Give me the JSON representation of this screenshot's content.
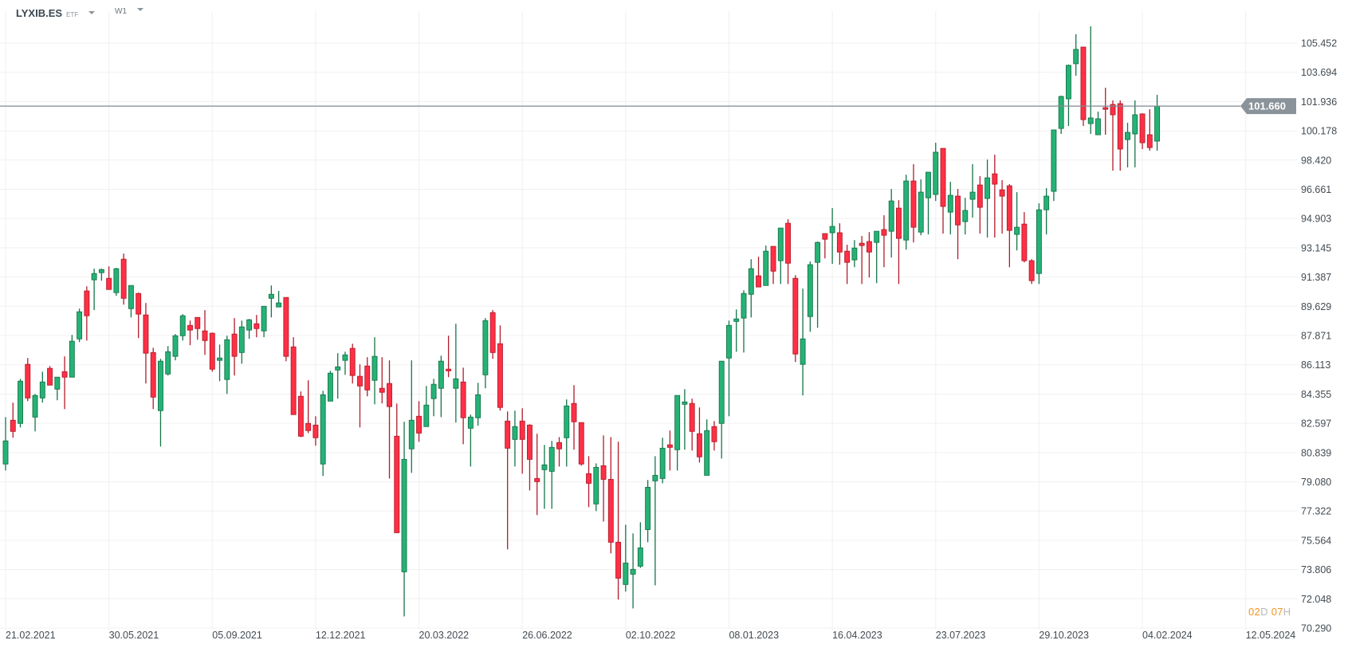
{
  "header": {
    "symbol": "LYXIB.ES",
    "instrument_type": "ETF",
    "timeframe": "W1"
  },
  "countdown": {
    "days": "02",
    "days_unit": "D",
    "hours": "07",
    "hours_unit": "H"
  },
  "colors": {
    "up_fill": "#26b276",
    "up_border": "#157549",
    "down_fill": "#ff3045",
    "down_border": "#b31b2b",
    "price_line": "#7f8a91",
    "grid": "#f0f0f0",
    "countdown_accent": "#f7931e"
  },
  "chart_data": {
    "type": "candlestick",
    "interval": "weekly",
    "current_price": "101.660",
    "current_price_value": 101.66,
    "ylim": [
      70.29,
      105.452
    ],
    "grid": true,
    "y_ticks": [
      "105.452",
      "103.694",
      "101.936",
      "100.178",
      "98.420",
      "96.661",
      "94.903",
      "93.145",
      "91.387",
      "89.629",
      "87.871",
      "86.113",
      "84.355",
      "82.597",
      "80.839",
      "79.080",
      "77.322",
      "75.564",
      "73.806",
      "72.048",
      "70.290"
    ],
    "x_ticks": [
      "21.02.2021",
      "30.05.2021",
      "05.09.2021",
      "12.12.2021",
      "20.03.2022",
      "26.06.2022",
      "02.10.2022",
      "08.01.2023",
      "16.04.2023",
      "23.07.2023",
      "29.10.2023",
      "04.02.2024",
      "12.05.2024"
    ],
    "weeks_per_x_tick": 14,
    "candles_ohlc": [
      [
        80.15,
        82.97,
        79.76,
        81.54
      ],
      [
        82.78,
        83.84,
        81.73,
        82.11
      ],
      [
        82.59,
        85.27,
        82.35,
        85.13
      ],
      [
        86.14,
        86.52,
        83.93,
        84.12
      ],
      [
        82.97,
        84.36,
        82.11,
        84.27
      ],
      [
        84.12,
        85.7,
        83.84,
        85.08
      ],
      [
        85.9,
        86.04,
        84.89,
        84.89
      ],
      [
        84.65,
        85.37,
        83.98,
        85.37
      ],
      [
        85.7,
        86.62,
        83.45,
        85.37
      ],
      [
        85.37,
        87.91,
        85.37,
        87.53
      ],
      [
        87.67,
        89.49,
        87.48,
        89.3
      ],
      [
        90.55,
        90.83,
        87.57,
        89.06
      ],
      [
        91.22,
        91.89,
        89.4,
        91.6
      ],
      [
        91.65,
        91.89,
        91.17,
        91.84
      ],
      [
        91.31,
        92.03,
        90.64,
        90.64
      ],
      [
        90.45,
        91.94,
        90.26,
        91.89
      ],
      [
        92.46,
        92.8,
        89.73,
        90.11
      ],
      [
        89.49,
        90.88,
        88.96,
        90.88
      ],
      [
        90.4,
        90.45,
        87.72,
        89.16
      ],
      [
        89.11,
        89.83,
        84.99,
        86.81
      ],
      [
        86.85,
        87.14,
        83.45,
        84.17
      ],
      [
        83.36,
        86.47,
        81.2,
        86.33
      ],
      [
        85.56,
        87.24,
        85.47,
        86.9
      ],
      [
        86.62,
        87.96,
        86.38,
        87.86
      ],
      [
        87.86,
        89.16,
        87.57,
        89.06
      ],
      [
        88.48,
        88.77,
        87.29,
        88.2
      ],
      [
        88.96,
        88.96,
        87.62,
        88.29
      ],
      [
        88.15,
        89.4,
        86.71,
        87.57
      ],
      [
        88.01,
        88.05,
        85.7,
        85.85
      ],
      [
        86.38,
        87.33,
        85.13,
        86.52
      ],
      [
        85.23,
        87.86,
        84.36,
        87.62
      ],
      [
        87.96,
        88.92,
        85.47,
        86.62
      ],
      [
        86.85,
        88.77,
        86.18,
        88.39
      ],
      [
        88.2,
        88.87,
        87.67,
        88.82
      ],
      [
        88.58,
        89.11,
        87.77,
        88.29
      ],
      [
        88.15,
        89.63,
        87.77,
        89.63
      ],
      [
        90.11,
        90.88,
        88.96,
        90.35
      ],
      [
        89.59,
        90.55,
        89.59,
        89.83
      ],
      [
        90.16,
        90.16,
        86.33,
        86.62
      ],
      [
        87.19,
        87.77,
        83.12,
        83.12
      ],
      [
        84.22,
        84.51,
        81.77,
        81.82
      ],
      [
        82.59,
        85.18,
        82.01,
        82.16
      ],
      [
        82.49,
        83.02,
        81.25,
        81.73
      ],
      [
        80.15,
        84.55,
        79.43,
        84.31
      ],
      [
        83.93,
        85.75,
        83.93,
        85.61
      ],
      [
        85.8,
        86.81,
        84.08,
        85.99
      ],
      [
        86.38,
        86.9,
        85.51,
        86.71
      ],
      [
        87.1,
        87.38,
        84.99,
        85.47
      ],
      [
        85.42,
        86.14,
        82.35,
        84.84
      ],
      [
        86.04,
        86.57,
        84.22,
        84.6
      ],
      [
        85.18,
        87.77,
        83.74,
        86.62
      ],
      [
        84.7,
        86.57,
        83.79,
        84.46
      ],
      [
        84.99,
        86.38,
        79.28,
        83.6
      ],
      [
        81.82,
        83.79,
        76.02,
        76.02
      ],
      [
        73.67,
        82.69,
        70.99,
        80.43
      ],
      [
        81.06,
        86.38,
        79.62,
        82.78
      ],
      [
        83.02,
        83.93,
        81.49,
        82.01
      ],
      [
        82.4,
        84.84,
        82.4,
        83.69
      ],
      [
        84.08,
        85.27,
        83.02,
        84.94
      ],
      [
        84.7,
        86.66,
        82.97,
        86.33
      ],
      [
        85.85,
        87.86,
        85.37,
        85.75
      ],
      [
        84.7,
        88.58,
        82.64,
        85.27
      ],
      [
        85.08,
        85.94,
        81.34,
        82.93
      ],
      [
        82.3,
        83.12,
        80.0,
        82.97
      ],
      [
        82.93,
        85.03,
        82.45,
        84.31
      ],
      [
        85.51,
        88.92,
        84.7,
        88.77
      ],
      [
        89.25,
        89.4,
        86.47,
        86.85
      ],
      [
        87.38,
        88.48,
        83.36,
        83.55
      ],
      [
        82.73,
        83.31,
        75.02,
        81.1
      ],
      [
        81.63,
        83.36,
        80.0,
        82.4
      ],
      [
        82.73,
        83.5,
        79.57,
        81.63
      ],
      [
        82.49,
        82.54,
        78.56,
        80.43
      ],
      [
        79.28,
        81.97,
        77.08,
        79.09
      ],
      [
        79.81,
        81.3,
        77.46,
        80.1
      ],
      [
        79.71,
        81.54,
        77.46,
        81.15
      ],
      [
        81.44,
        81.77,
        80.0,
        81.06
      ],
      [
        81.73,
        84.03,
        80.0,
        83.64
      ],
      [
        83.79,
        84.89,
        81.01,
        82.69
      ],
      [
        82.64,
        82.64,
        80.05,
        80.15
      ],
      [
        79.57,
        80.62,
        77.56,
        78.99
      ],
      [
        77.75,
        80.19,
        77.32,
        79.95
      ],
      [
        80.05,
        81.87,
        76.69,
        79.23
      ],
      [
        79.23,
        81.77,
        74.78,
        75.45
      ],
      [
        75.45,
        81.49,
        72.0,
        73.29
      ],
      [
        72.91,
        76.5,
        72.48,
        74.2
      ],
      [
        73.53,
        75.98,
        71.47,
        73.82
      ],
      [
        74.01,
        76.65,
        73.91,
        75.11
      ],
      [
        76.21,
        79.19,
        75.45,
        78.75
      ],
      [
        79.14,
        80.62,
        72.86,
        79.47
      ],
      [
        79.28,
        81.73,
        78.99,
        81.1
      ],
      [
        81.3,
        82.16,
        79.76,
        81.15
      ],
      [
        81.01,
        84.27,
        79.76,
        84.27
      ],
      [
        83.74,
        84.65,
        81.01,
        83.88
      ],
      [
        83.79,
        84.08,
        80.96,
        82.11
      ],
      [
        81.97,
        83.55,
        80.24,
        80.58
      ],
      [
        79.47,
        82.83,
        79.47,
        82.16
      ],
      [
        82.4,
        82.73,
        80.96,
        81.49
      ],
      [
        82.59,
        86.33,
        80.48,
        86.33
      ],
      [
        86.52,
        88.77,
        83.02,
        88.48
      ],
      [
        88.72,
        89.44,
        86.9,
        88.87
      ],
      [
        88.92,
        90.59,
        86.85,
        90.4
      ],
      [
        90.35,
        92.46,
        88.96,
        91.89
      ],
      [
        91.46,
        92.61,
        90.97,
        90.79
      ],
      [
        90.88,
        93.28,
        90.97,
        92.94
      ],
      [
        93.23,
        93.23,
        90.97,
        91.74
      ],
      [
        92.37,
        94.33,
        90.97,
        94.33
      ],
      [
        94.62,
        94.86,
        90.97,
        92.22
      ],
      [
        91.31,
        91.5,
        86.28,
        86.76
      ],
      [
        86.14,
        90.69,
        84.27,
        87.67
      ],
      [
        89.01,
        92.32,
        88.1,
        92.13
      ],
      [
        92.27,
        93.52,
        88.34,
        93.47
      ],
      [
        94.0,
        94.0,
        92.51,
        93.66
      ],
      [
        94.05,
        95.53,
        92.18,
        94.43
      ],
      [
        94.05,
        94.62,
        92.13,
        92.89
      ],
      [
        92.94,
        93.33,
        90.97,
        92.27
      ],
      [
        92.42,
        93.61,
        91.98,
        93.13
      ],
      [
        93.42,
        93.85,
        90.97,
        93.28
      ],
      [
        93.52,
        94.09,
        91.36,
        92.89
      ],
      [
        93.47,
        94.14,
        91.02,
        94.14
      ],
      [
        94.24,
        95.1,
        91.98,
        93.9
      ],
      [
        94.14,
        96.68,
        92.56,
        95.96
      ],
      [
        95.53,
        96.01,
        90.97,
        93.71
      ],
      [
        93.61,
        97.54,
        93.04,
        97.16
      ],
      [
        97.16,
        98.17,
        93.47,
        94.38
      ],
      [
        94.09,
        97.26,
        93.9,
        96.49
      ],
      [
        96.15,
        97.69,
        93.95,
        97.69
      ],
      [
        96.35,
        99.46,
        95.96,
        98.89
      ],
      [
        99.12,
        99.12,
        94.0,
        95.63
      ],
      [
        95.29,
        97.11,
        93.95,
        96.3
      ],
      [
        96.25,
        96.68,
        92.46,
        94.52
      ],
      [
        94.72,
        96.15,
        93.95,
        95.39
      ],
      [
        96.06,
        98.17,
        94.96,
        96.49
      ],
      [
        96.92,
        97.45,
        94.0,
        95.58
      ],
      [
        96.11,
        98.45,
        93.76,
        97.35
      ],
      [
        97.59,
        98.74,
        93.76,
        96.97
      ],
      [
        96.63,
        97.21,
        94.0,
        96.25
      ],
      [
        96.87,
        96.97,
        91.98,
        94.19
      ],
      [
        93.95,
        96.49,
        92.99,
        94.38
      ],
      [
        94.57,
        95.29,
        92.27,
        92.37
      ],
      [
        92.37,
        92.46,
        90.97,
        91.17
      ],
      [
        91.6,
        95.82,
        90.97,
        95.43
      ],
      [
        95.43,
        96.73,
        93.95,
        96.25
      ],
      [
        96.54,
        100.23,
        95.96,
        100.23
      ],
      [
        100.32,
        102.29,
        99.99,
        102.24
      ],
      [
        102.1,
        104.16,
        100.47,
        104.11
      ],
      [
        104.21,
        105.98,
        103.49,
        105.07
      ],
      [
        105.21,
        105.21,
        100.47,
        100.85
      ],
      [
        100.61,
        106.46,
        99.99,
        100.95
      ],
      [
        99.94,
        101.33,
        99.94,
        100.9
      ],
      [
        101.57,
        102.77,
        99.94,
        101.47
      ],
      [
        101.76,
        102.0,
        97.78,
        101.14
      ],
      [
        101.81,
        102.0,
        97.78,
        99.08
      ],
      [
        99.65,
        100.66,
        97.98,
        100.08
      ],
      [
        99.99,
        102.0,
        97.98,
        101.14
      ],
      [
        101.19,
        101.23,
        99.08,
        99.46
      ],
      [
        99.94,
        101.47,
        98.98,
        99.17
      ],
      [
        99.56,
        102.34,
        98.98,
        101.66
      ]
    ]
  }
}
